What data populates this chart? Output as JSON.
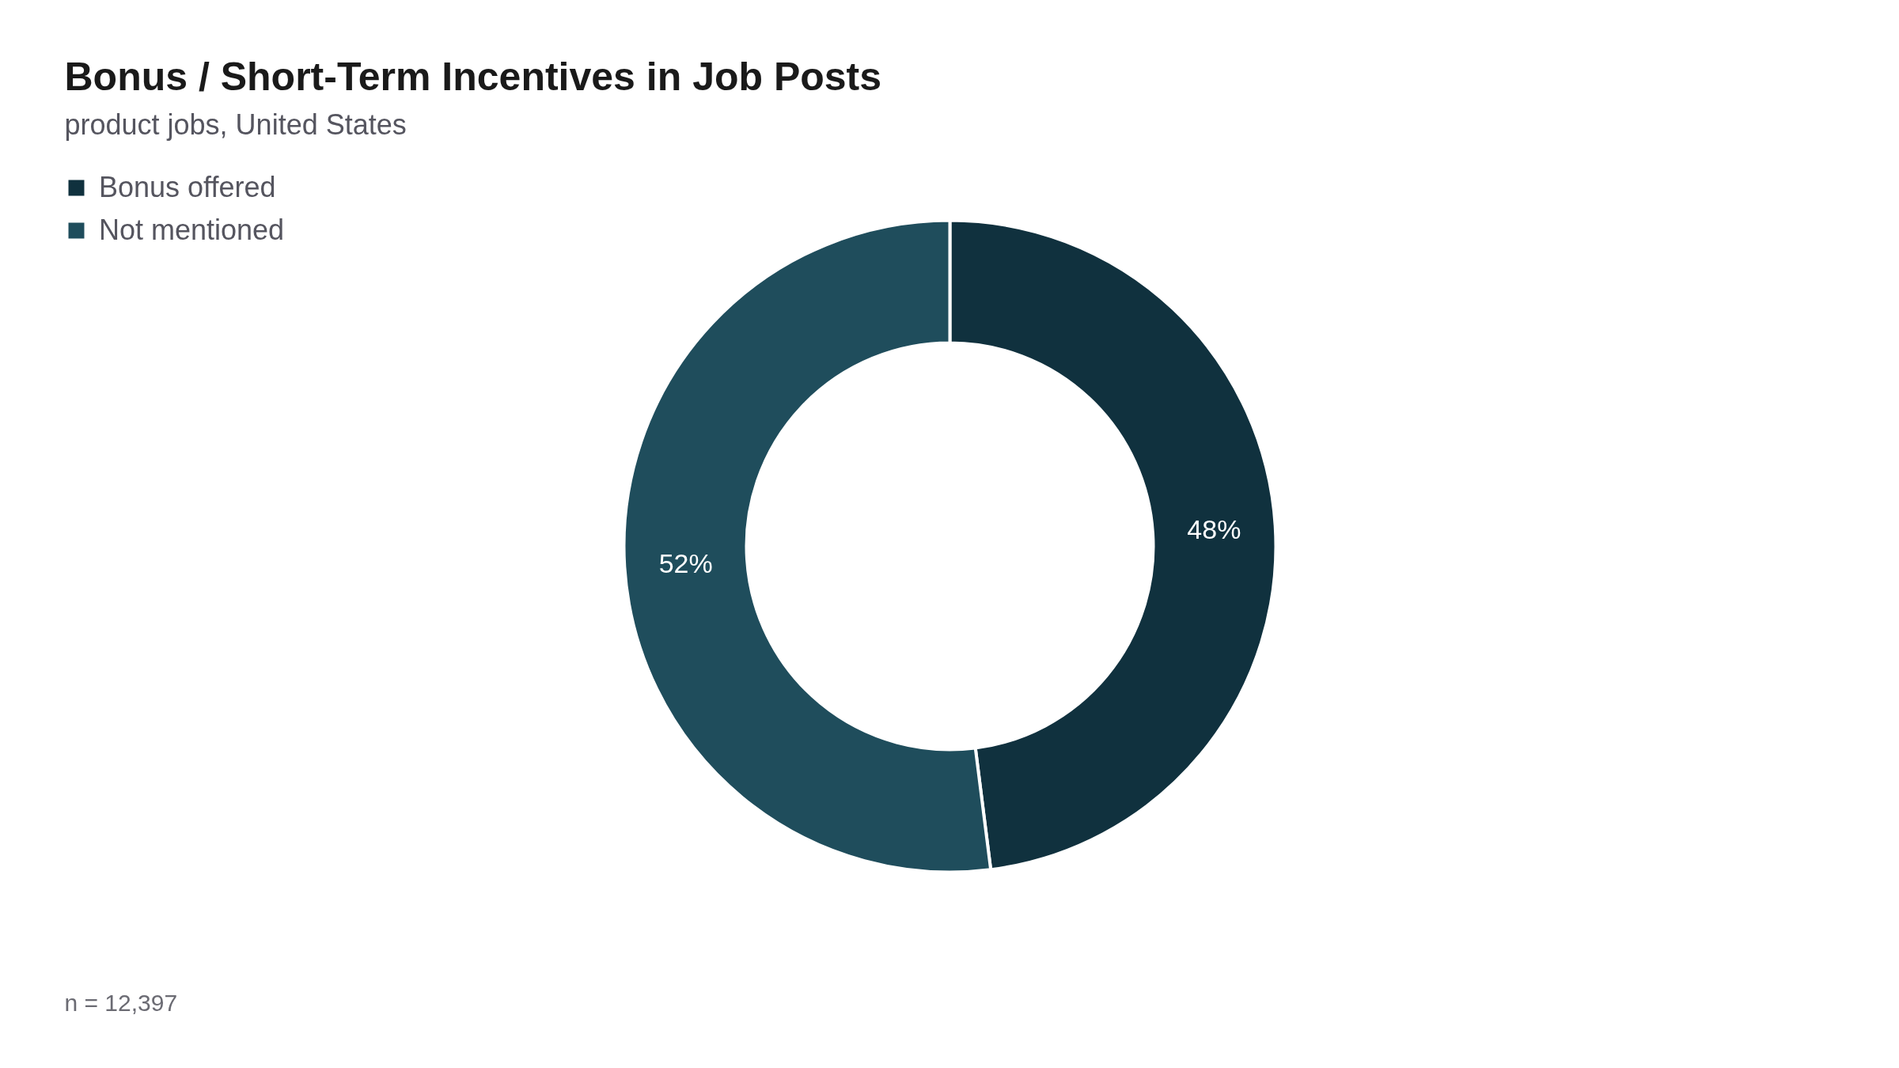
{
  "chart_data": {
    "type": "donut",
    "title": "Bonus / Short-Term Incentives in Job Posts",
    "subtitle": "product jobs, United States",
    "categories": [
      "Bonus offered",
      "Not mentioned"
    ],
    "values": [
      48,
      52
    ],
    "colors": [
      "#10313e",
      "#1f4d5c"
    ],
    "value_labels": [
      "48%",
      "52%"
    ],
    "legend": "top left",
    "annotations": [
      "n = 12,397"
    ]
  }
}
